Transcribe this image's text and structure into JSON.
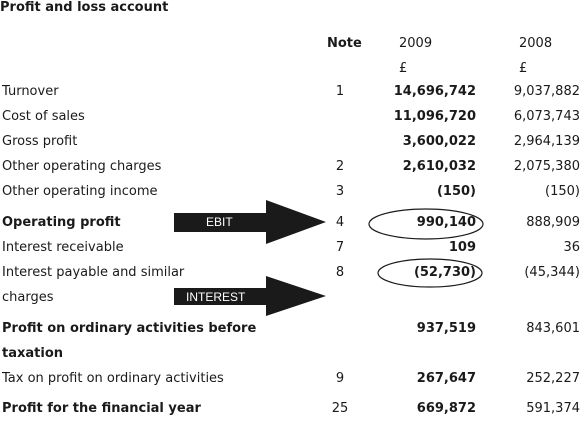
{
  "title": "Profit and loss account",
  "header": {
    "note": "Note",
    "year1": "2009",
    "year2": "2008",
    "unit1": "£",
    "unit2": "£"
  },
  "rows": [
    {
      "label": "Turnover",
      "note": "1",
      "y2009": "14,696,742",
      "y2008": "9,037,882"
    },
    {
      "label": "Cost of sales",
      "note": "",
      "y2009": "11,096,720",
      "y2008": "6,073,743"
    },
    {
      "label": "Gross profit",
      "note": "",
      "y2009": "3,600,022",
      "y2008": "2,964,139"
    },
    {
      "label": "Other operating charges",
      "note": "2",
      "y2009": "2,610,032",
      "y2008": "2,075,380"
    },
    {
      "label": "Other operating income",
      "note": "3",
      "y2009": "(150)",
      "y2008": "(150)"
    },
    {
      "label": "Operating profit",
      "note": "4",
      "y2009": "990,140",
      "y2008": "888,909"
    },
    {
      "label": "Interest receivable",
      "note": "7",
      "y2009": "109",
      "y2008": "36"
    },
    {
      "label": "Interest payable and similar",
      "label2": "charges",
      "note": "8",
      "y2009": "(52,730)",
      "y2008": "(45,344)"
    },
    {
      "label": "Profit on ordinary activities before",
      "label2": "taxation",
      "note": "",
      "y2009": "937,519",
      "y2008": "843,601"
    },
    {
      "label": "Tax on profit on ordinary activities",
      "note": "9",
      "y2009": "267,647",
      "y2008": "252,227"
    },
    {
      "label": "Profit for the financial year",
      "note": "25",
      "y2009": "669,872",
      "y2008": "591,374"
    }
  ],
  "annotations": {
    "ebit": "EBIT",
    "interest": "INTEREST"
  }
}
